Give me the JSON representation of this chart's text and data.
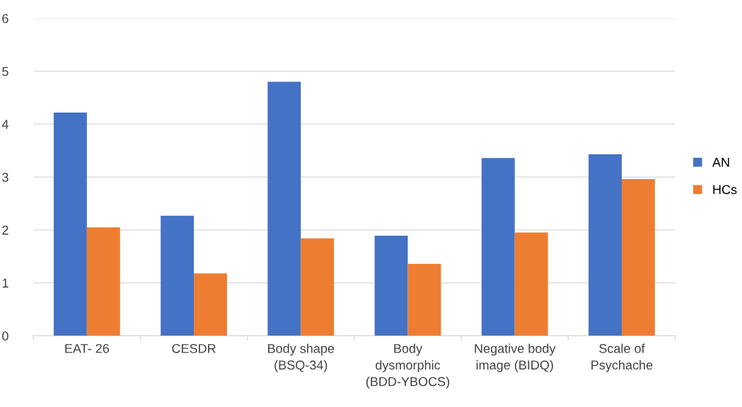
{
  "chart_data": {
    "type": "bar",
    "categories": [
      "EAT- 26",
      "CESDR",
      "Body shape\n(BSQ-34)",
      "Body\ndysmorphic\n(BDD-YBOCS)",
      "Negative body\nimage (BIDQ)",
      "Scale of\nPsychache"
    ],
    "series": [
      {
        "name": "AN",
        "color": "#4472c4",
        "values": [
          4.22,
          2.27,
          4.8,
          1.89,
          3.36,
          3.43
        ]
      },
      {
        "name": "HCs",
        "color": "#ed7d31",
        "values": [
          2.05,
          1.18,
          1.84,
          1.36,
          1.95,
          2.96
        ]
      }
    ],
    "ylim": [
      0,
      6
    ],
    "yticks": [
      0,
      1,
      2,
      3,
      4,
      5,
      6
    ],
    "grid": "y",
    "legend": "right"
  }
}
